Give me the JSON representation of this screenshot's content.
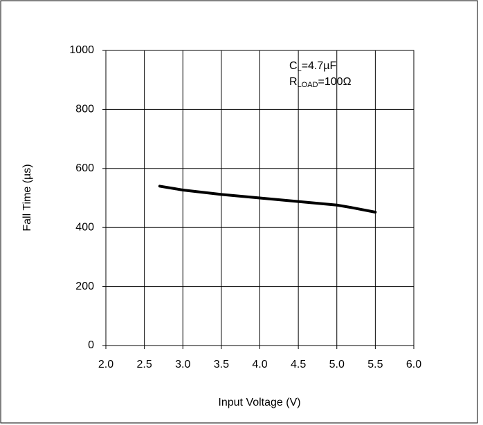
{
  "chart_data": {
    "type": "line",
    "x_label": "Input Voltage (V)",
    "y_label": "Fall Time (µs)",
    "annotations": [
      {
        "symbol": "C",
        "subscript": "L",
        "text": "=4.7µF"
      },
      {
        "symbol": "R",
        "subscript": "LOAD",
        "text": "=100Ω"
      }
    ],
    "series": [
      {
        "name": "Fall Time",
        "color": "#000000",
        "x": [
          2.7,
          3.0,
          3.5,
          4.0,
          4.5,
          5.0,
          5.2,
          5.5
        ],
        "values": [
          540,
          527,
          512,
          500,
          488,
          476,
          467,
          452
        ]
      }
    ],
    "xlim": [
      2.0,
      6.0
    ],
    "xticks": [
      {
        "value": 2.0,
        "label": "2.0"
      },
      {
        "value": 2.5,
        "label": "2.5"
      },
      {
        "value": 3.0,
        "label": "3.0"
      },
      {
        "value": 3.5,
        "label": "3.5"
      },
      {
        "value": 4.0,
        "label": "4.0"
      },
      {
        "value": 4.5,
        "label": "4.5"
      },
      {
        "value": 5.0,
        "label": "5.0"
      },
      {
        "value": 5.5,
        "label": "5.5"
      },
      {
        "value": 6.0,
        "label": "6.0"
      }
    ],
    "ylim": [
      0,
      1000
    ],
    "yticks": [
      0,
      200,
      400,
      600,
      800,
      1000
    ],
    "grid": true
  }
}
